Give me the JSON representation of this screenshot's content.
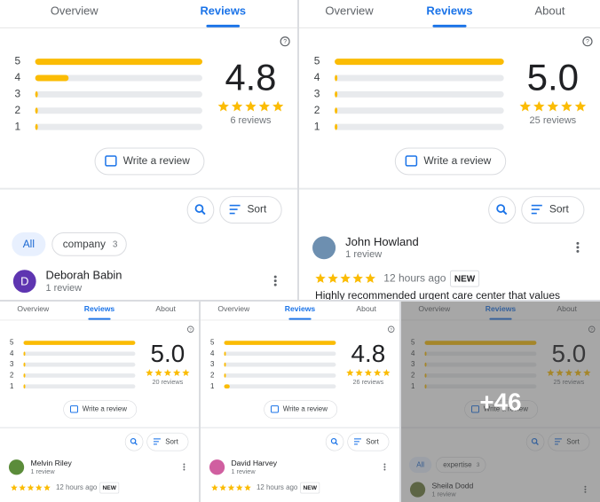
{
  "panels": [
    {
      "tabs": [
        "Overview",
        "Reviews"
      ],
      "active_tab": 1,
      "rating_levels": [
        5,
        4,
        3,
        2,
        1
      ],
      "distribution": [
        100,
        20,
        0,
        0,
        0
      ],
      "score": "4.8",
      "review_count": "6 reviews",
      "write_button": "Write a review",
      "sort_button": "Sort",
      "chips": [
        {
          "label": "All"
        },
        {
          "label": "company",
          "count": 3
        }
      ],
      "reviewer": {
        "avatar_letter": "D",
        "name": "Deborah Babin",
        "subtitle": "1 review"
      }
    },
    {
      "tabs": [
        "Overview",
        "Reviews",
        "About"
      ],
      "active_tab": 1,
      "rating_levels": [
        5,
        4,
        3,
        2,
        1
      ],
      "distribution": [
        100,
        0,
        0,
        0,
        0
      ],
      "score": "5.0",
      "review_count": "25 reviews",
      "write_button": "Write a review",
      "sort_button": "Sort",
      "reviewer": {
        "name": "John Howland",
        "subtitle": "1 review",
        "time": "12 hours ago",
        "badge": "NEW",
        "text": "Highly recommended urgent care center that values"
      }
    },
    {
      "tabs": [
        "Overview",
        "Reviews",
        "About"
      ],
      "active_tab": 1,
      "rating_levels": [
        5,
        4,
        3,
        2,
        1
      ],
      "distribution": [
        100,
        0,
        0,
        0,
        0
      ],
      "score": "5.0",
      "review_count": "20 reviews",
      "write_button": "Write a review",
      "sort_button": "Sort",
      "reviewer": {
        "name": "Melvin Riley",
        "subtitle": "1 review",
        "time": "12 hours ago",
        "badge": "NEW"
      }
    },
    {
      "tabs": [
        "Overview",
        "Reviews",
        "About"
      ],
      "active_tab": 1,
      "rating_levels": [
        5,
        4,
        3,
        2,
        1
      ],
      "distribution": [
        100,
        0,
        0,
        0,
        5
      ],
      "score": "4.8",
      "review_count": "26 reviews",
      "write_button": "Write a review",
      "sort_button": "Sort",
      "reviewer": {
        "name": "David Harvey",
        "subtitle": "1 review",
        "time": "12 hours ago",
        "badge": "NEW"
      }
    },
    {
      "tabs": [
        "Overview",
        "Reviews",
        "About"
      ],
      "active_tab": 1,
      "rating_levels": [
        5,
        4,
        3,
        2,
        1
      ],
      "distribution": [
        100,
        0,
        0,
        0,
        0
      ],
      "score": "5.0",
      "review_count": "25 reviews",
      "write_button": "Write a review",
      "sort_button": "Sort",
      "chips": [
        {
          "label": "All"
        },
        {
          "label": "expertise",
          "count": 3
        }
      ],
      "reviewer": {
        "name": "Sheila Dodd",
        "subtitle": "1 review"
      }
    }
  ],
  "more_count": "+46"
}
